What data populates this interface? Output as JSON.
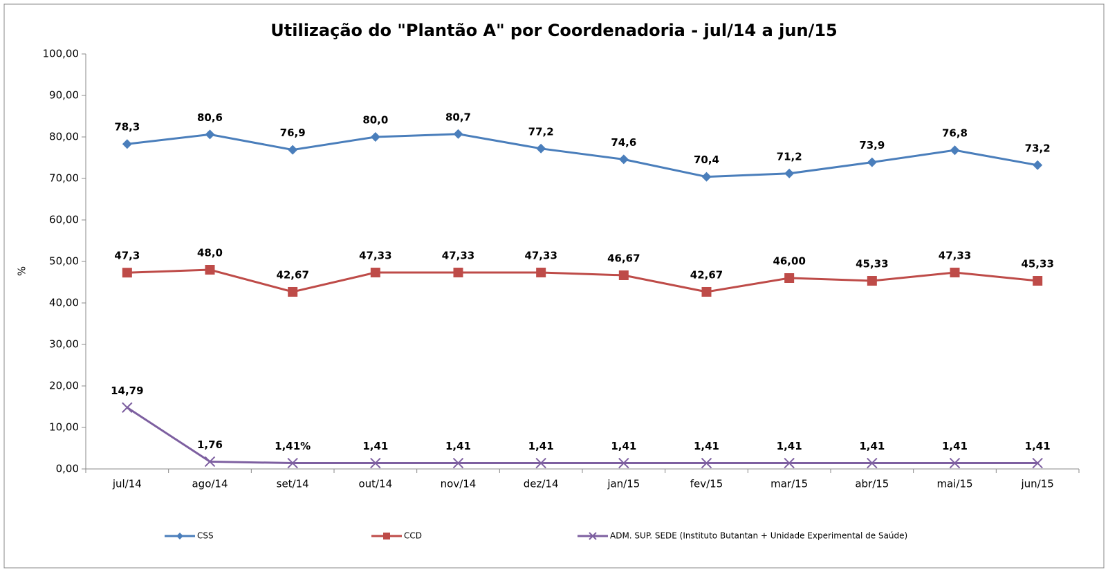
{
  "chart_data": {
    "type": "line",
    "title": "Utilização do \"Plantão A\" por Coordenadoria - jul/14 a jun/15",
    "y_label": "%",
    "categories": [
      "jul/14",
      "ago/14",
      "set/14",
      "out/14",
      "nov/14",
      "dez/14",
      "jan/15",
      "fev/15",
      "mar/15",
      "abr/15",
      "mai/15",
      "jun/15"
    ],
    "series": [
      {
        "name": "CSS",
        "color": "#4a7ebb",
        "marker": "diamond",
        "values": [
          78.3,
          80.6,
          76.9,
          80.0,
          80.7,
          77.2,
          74.6,
          70.4,
          71.2,
          73.9,
          76.8,
          73.2
        ],
        "value_labels": [
          "78,3",
          "80,6",
          "76,9",
          "80,0",
          "80,7",
          "77,2",
          "74,6",
          "70,4",
          "71,2",
          "73,9",
          "76,8",
          "73,2"
        ]
      },
      {
        "name": "CCD",
        "color": "#be4b48",
        "marker": "square",
        "values": [
          47.3,
          48.0,
          42.67,
          47.33,
          47.33,
          47.33,
          46.67,
          42.67,
          46.0,
          45.33,
          47.33,
          45.33
        ],
        "value_labels": [
          "47,3",
          "48,0",
          "42,67",
          "47,33",
          "47,33",
          "47,33",
          "46,67",
          "42,67",
          "46,00",
          "45,33",
          "47,33",
          "45,33"
        ]
      },
      {
        "name": "ADM. SUP. SEDE (Instituto Butantan + Unidade Experimental de Saúde)",
        "color": "#7d5fa0",
        "marker": "x",
        "values": [
          14.79,
          1.76,
          1.41,
          1.41,
          1.41,
          1.41,
          1.41,
          1.41,
          1.41,
          1.41,
          1.41,
          1.41
        ],
        "value_labels": [
          "14,79",
          "1,76",
          "1,41%",
          "1,41",
          "1,41",
          "1,41",
          "1,41",
          "1,41",
          "1,41",
          "1,41",
          "1,41",
          "1,41"
        ]
      }
    ],
    "ylim": [
      0,
      100
    ],
    "yticks": [
      {
        "value": 0,
        "label": "0,00"
      },
      {
        "value": 10,
        "label": "10,00"
      },
      {
        "value": 20,
        "label": "20,00"
      },
      {
        "value": 30,
        "label": "30,00"
      },
      {
        "value": 40,
        "label": "40,00"
      },
      {
        "value": 50,
        "label": "50,00"
      },
      {
        "value": 60,
        "label": "60,00"
      },
      {
        "value": 70,
        "label": "70,00"
      },
      {
        "value": 80,
        "label": "80,00"
      },
      {
        "value": 90,
        "label": "90,00"
      },
      {
        "value": 100,
        "label": "100,00"
      }
    ],
    "grid": false,
    "legend": "bottom"
  }
}
